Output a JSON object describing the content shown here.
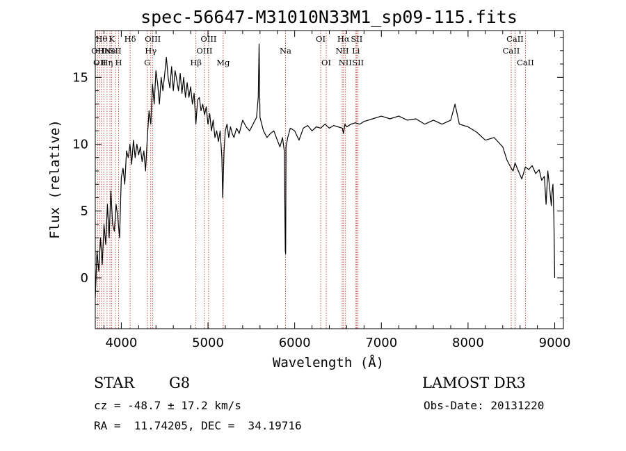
{
  "chart_data": {
    "type": "line",
    "title": "spec-56647-M31010N33M1_sp09-115.fits",
    "xlabel": "Wavelength (Å)",
    "ylabel": "Flux (relative)",
    "xlim": [
      3700,
      9100
    ],
    "ylim": [
      -3.8,
      18.5
    ],
    "xticks": [
      4000,
      5000,
      6000,
      7000,
      8000,
      9000
    ],
    "yticks": [
      0,
      5,
      10,
      15
    ],
    "series": [
      {
        "x": [
          3700,
          3720,
          3740,
          3760,
          3780,
          3800,
          3820,
          3840,
          3860,
          3880,
          3900,
          3920,
          3940,
          3960,
          3980,
          4000,
          4020,
          4040,
          4060,
          4080,
          4100,
          4120,
          4140,
          4160,
          4180,
          4200,
          4220,
          4240,
          4260,
          4280,
          4300,
          4320,
          4340,
          4360,
          4380,
          4400,
          4420,
          4440,
          4460,
          4480,
          4500,
          4520,
          4540,
          4560,
          4580,
          4600,
          4620,
          4640,
          4660,
          4680,
          4700,
          4720,
          4740,
          4760,
          4780,
          4800,
          4820,
          4840,
          4860,
          4880,
          4900,
          4920,
          4940,
          4960,
          4980,
          5000,
          5020,
          5040,
          5060,
          5080,
          5100,
          5120,
          5140,
          5160,
          5170,
          5185,
          5200,
          5220,
          5240,
          5260,
          5280,
          5300,
          5330,
          5360,
          5400,
          5440,
          5480,
          5520,
          5560,
          5580,
          5590,
          5600,
          5640,
          5680,
          5720,
          5760,
          5800,
          5830,
          5860,
          5880,
          5892,
          5896,
          5900,
          5920,
          5950,
          6000,
          6050,
          6100,
          6150,
          6200,
          6250,
          6300,
          6350,
          6400,
          6450,
          6500,
          6550,
          6563,
          6580,
          6600,
          6650,
          6700,
          6750,
          6800,
          6900,
          7000,
          7100,
          7200,
          7300,
          7400,
          7500,
          7600,
          7700,
          7800,
          7850,
          7900,
          8000,
          8100,
          8200,
          8300,
          8400,
          8450,
          8498,
          8520,
          8542,
          8580,
          8620,
          8662,
          8700,
          8740,
          8780,
          8820,
          8850,
          8880,
          8900,
          8920,
          8940,
          8960,
          8970,
          8980,
          8990,
          9000
        ],
        "y": [
          -1.5,
          2.0,
          0.5,
          3.0,
          1.0,
          4.0,
          2.5,
          5.5,
          3.0,
          6.5,
          4.0,
          3.5,
          5.5,
          4.5,
          3.0,
          7.5,
          8.2,
          7.0,
          9.5,
          9.0,
          10.0,
          8.5,
          10.3,
          9.0,
          10.0,
          9.2,
          9.8,
          8.7,
          9.5,
          8.0,
          10.5,
          12.5,
          11.5,
          14.5,
          13.0,
          15.5,
          14.5,
          13.0,
          15.0,
          14.0,
          15.2,
          16.5,
          15.0,
          14.2,
          15.8,
          14.0,
          15.5,
          14.8,
          14.0,
          15.3,
          13.8,
          15.0,
          13.5,
          14.6,
          13.5,
          14.3,
          13.0,
          13.8,
          11.5,
          13.3,
          13.5,
          12.5,
          13.0,
          12.2,
          12.8,
          11.5,
          12.3,
          11.0,
          11.8,
          10.5,
          11.0,
          10.2,
          11.0,
          9.0,
          6.0,
          9.5,
          11.0,
          11.5,
          10.5,
          11.3,
          10.8,
          10.5,
          11.2,
          10.8,
          11.8,
          11.3,
          11.0,
          11.5,
          12.0,
          13.5,
          17.5,
          12.0,
          11.0,
          10.5,
          10.8,
          11.0,
          10.3,
          9.8,
          10.5,
          9.5,
          2.0,
          1.8,
          9.8,
          10.5,
          11.2,
          11.0,
          10.3,
          11.2,
          11.4,
          11.0,
          11.3,
          11.2,
          11.5,
          11.2,
          11.4,
          11.3,
          11.2,
          10.8,
          11.5,
          11.3,
          11.5,
          11.6,
          11.5,
          11.7,
          11.9,
          12.1,
          11.9,
          12.1,
          11.8,
          11.9,
          11.5,
          11.8,
          11.5,
          11.8,
          13.0,
          11.5,
          11.3,
          10.9,
          10.3,
          10.5,
          9.8,
          8.8,
          8.2,
          8.0,
          8.6,
          8.0,
          7.4,
          8.3,
          8.1,
          8.4,
          7.8,
          8.1,
          7.3,
          7.6,
          5.5,
          8.0,
          6.8,
          5.4,
          6.5,
          7.0,
          4.5,
          0.0
        ]
      }
    ],
    "line_labels": [
      {
        "wave": 3727,
        "text": "OII",
        "row": 2
      },
      {
        "wave": 3750,
        "text": "OII",
        "row": 3
      },
      {
        "wave": 3771,
        "text": "Hθ",
        "row": 1
      },
      {
        "wave": 3798,
        "text": "He",
        "row": 2
      },
      {
        "wave": 3835,
        "text": "Hη",
        "row": 3
      },
      {
        "wave": 3869,
        "text": "Ne",
        "row": 2
      },
      {
        "wave": 3890,
        "text": "K",
        "row": 1
      },
      {
        "wave": 3934,
        "text": "SII",
        "row": 2
      },
      {
        "wave": 3969,
        "text": "H",
        "row": 3
      },
      {
        "wave": 4102,
        "text": "Hδ",
        "row": 1
      },
      {
        "wave": 4300,
        "text": "G",
        "row": 3
      },
      {
        "wave": 4340,
        "text": "Hγ",
        "row": 2
      },
      {
        "wave": 4363,
        "text": "OIII",
        "row": 1
      },
      {
        "wave": 4861,
        "text": "Hβ",
        "row": 3
      },
      {
        "wave": 4959,
        "text": "OIII",
        "row": 2
      },
      {
        "wave": 5007,
        "text": "OIII",
        "row": 1
      },
      {
        "wave": 5175,
        "text": "Mg",
        "row": 3
      },
      {
        "wave": 5894,
        "text": "Na",
        "row": 2
      },
      {
        "wave": 6300,
        "text": "OI",
        "row": 1
      },
      {
        "wave": 6364,
        "text": "OI",
        "row": 3
      },
      {
        "wave": 6548,
        "text": "NII",
        "row": 2
      },
      {
        "wave": 6563,
        "text": "Hα",
        "row": 1
      },
      {
        "wave": 6583,
        "text": "NII",
        "row": 3
      },
      {
        "wave": 6707,
        "text": "Li",
        "row": 2
      },
      {
        "wave": 6716,
        "text": "SII",
        "row": 1
      },
      {
        "wave": 6731,
        "text": "SII",
        "row": 3
      },
      {
        "wave": 8498,
        "text": "CaII",
        "row": 2
      },
      {
        "wave": 8542,
        "text": "CaII",
        "row": 1
      },
      {
        "wave": 8662,
        "text": "CaII",
        "row": 3
      }
    ]
  },
  "info": {
    "object_class": "STAR",
    "subclass": "G8",
    "survey": "LAMOST DR3",
    "redshift": "cz = -48.7 ± 17.2 km/s",
    "obs_date": "Obs-Date: 20131220",
    "coords": "RA =  11.74205, DEC =  34.19716"
  }
}
